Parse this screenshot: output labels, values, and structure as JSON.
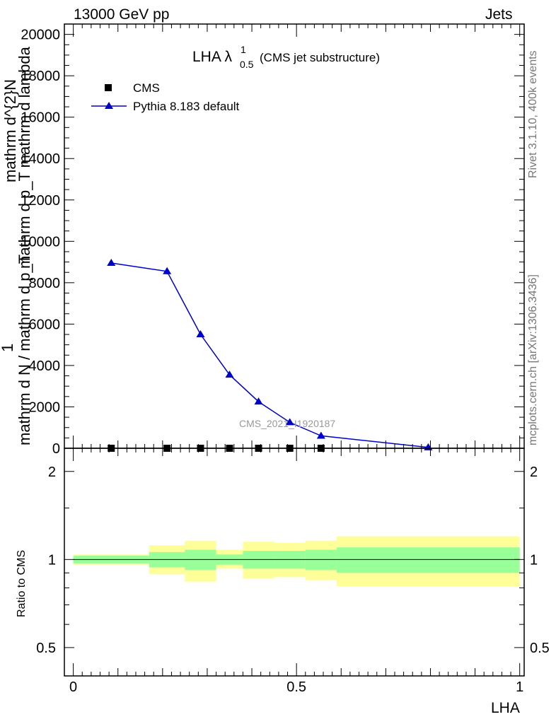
{
  "header": {
    "left": "13000 GeV pp",
    "right": "Jets"
  },
  "side": {
    "top": "Rivet 3.1.10,  400k events",
    "bottom": "mcplots.cern.ch [arXiv:1306.3436]"
  },
  "watermark": "CMS_2021_I1920187",
  "colors": {
    "pythia": "#0000cc",
    "cms": "#000000",
    "band_inner": "#99ff99",
    "band_outer": "#ffff99",
    "sidetext": "#777777",
    "watermark": "#999999"
  },
  "chart_data": [
    {
      "type": "line",
      "title": {
        "main": "LHA λ",
        "sup": "1",
        "sub": "0.5",
        "note": "(CMS jet substructure)"
      },
      "ylabel": {
        "numerator": "1",
        "denominator": "mathrm d N / mathrm d p_T",
        "right_numerator": "mathrm d^{2}N",
        "right_denominator": "mathrm d p_T mathrm d lambda"
      },
      "xlim": [
        -0.02,
        1.01
      ],
      "ylim": [
        0,
        20500
      ],
      "yticks": [
        0,
        2000,
        4000,
        6000,
        8000,
        10000,
        12000,
        14000,
        16000,
        18000,
        20000
      ],
      "ytick_labels": [
        "0",
        "2000",
        "4000",
        "6000",
        "8000",
        "10000",
        "12000",
        "14000",
        "16000",
        "18000",
        "20000"
      ],
      "legend": {
        "position": "top-left",
        "entries": [
          "CMS",
          "Pythia 8.183 default"
        ]
      },
      "series": [
        {
          "name": "CMS",
          "marker": "square",
          "x": [
            0.085,
            0.21,
            0.285,
            0.35,
            0.415,
            0.485,
            0.555
          ],
          "y": [
            0,
            0,
            0,
            0,
            0,
            0,
            0
          ]
        },
        {
          "name": "Pythia 8.183 default",
          "marker": "triangle",
          "x": [
            0.085,
            0.21,
            0.285,
            0.35,
            0.415,
            0.485,
            0.555,
            0.795
          ],
          "y": [
            8950,
            8550,
            5500,
            3550,
            2250,
            1250,
            600,
            40
          ],
          "yerr": [
            60,
            150,
            70,
            60,
            40,
            30,
            20,
            10
          ]
        }
      ]
    },
    {
      "type": "area",
      "ylabel": "Ratio to CMS",
      "xlabel": "LHA",
      "log_y": true,
      "xlim": [
        -0.02,
        1.01
      ],
      "ylim": [
        0.4,
        2.4
      ],
      "yticks": [
        0.5,
        1,
        2
      ],
      "ytick_labels": [
        "0.5",
        "1",
        "2"
      ],
      "xticks": [
        0,
        0.5,
        1
      ],
      "xtick_labels": [
        "0",
        "0.5",
        "1"
      ],
      "reference_line": 1,
      "bins": [
        {
          "x0": 0.0,
          "x1": 0.17,
          "inner": [
            0.97,
            1.03
          ],
          "outer": [
            0.96,
            1.04
          ]
        },
        {
          "x0": 0.17,
          "x1": 0.25,
          "inner": [
            0.94,
            1.06
          ],
          "outer": [
            0.89,
            1.12
          ]
        },
        {
          "x0": 0.25,
          "x1": 0.32,
          "inner": [
            0.92,
            1.08
          ],
          "outer": [
            0.84,
            1.16
          ]
        },
        {
          "x0": 0.32,
          "x1": 0.38,
          "inner": [
            0.96,
            1.04
          ],
          "outer": [
            0.93,
            1.08
          ]
        },
        {
          "x0": 0.38,
          "x1": 0.45,
          "inner": [
            0.93,
            1.07
          ],
          "outer": [
            0.86,
            1.15
          ]
        },
        {
          "x0": 0.45,
          "x1": 0.52,
          "inner": [
            0.93,
            1.07
          ],
          "outer": [
            0.87,
            1.14
          ]
        },
        {
          "x0": 0.52,
          "x1": 0.59,
          "inner": [
            0.92,
            1.08
          ],
          "outer": [
            0.85,
            1.16
          ]
        },
        {
          "x0": 0.59,
          "x1": 1.0,
          "inner": [
            0.9,
            1.1
          ],
          "outer": [
            0.81,
            1.2
          ]
        }
      ]
    }
  ]
}
